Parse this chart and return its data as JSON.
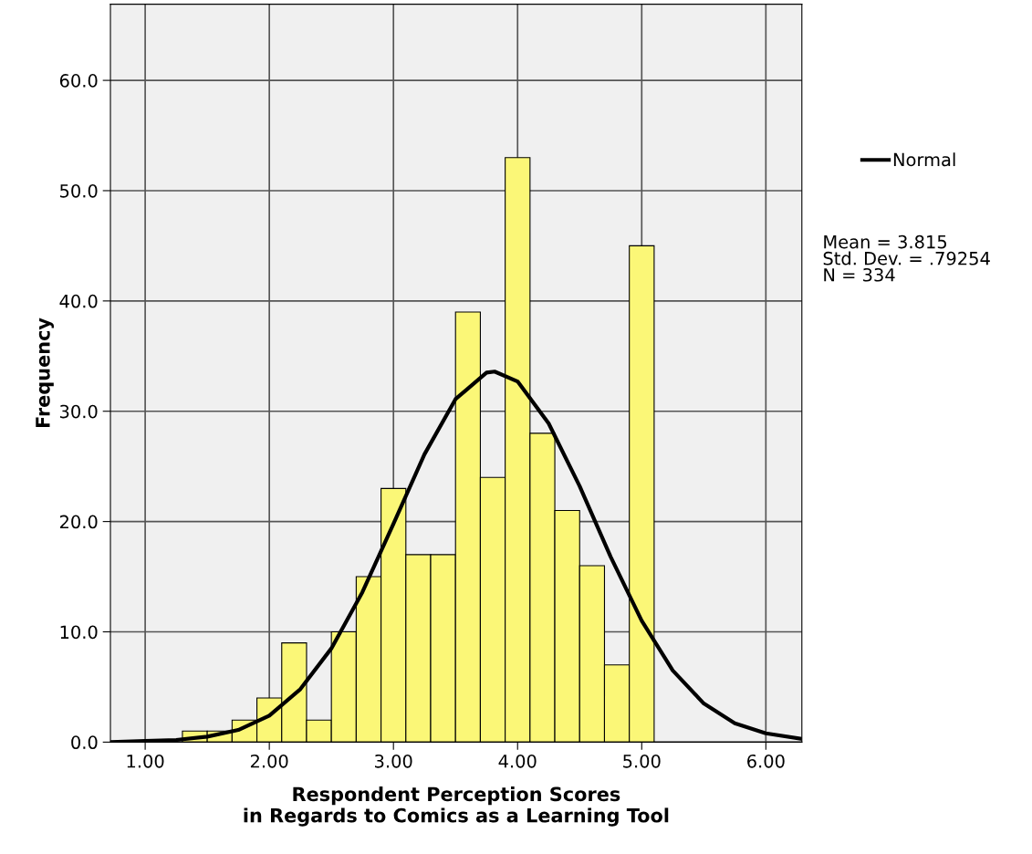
{
  "chart_data": {
    "type": "histogram",
    "xlabel": "Respondent Perception Scores\nin Regards to Comics as a Learning Tool",
    "ylabel": "Frequency",
    "bins": [
      1.3,
      1.5,
      1.7,
      1.9,
      2.1,
      2.3,
      2.5,
      2.7,
      2.9,
      3.1,
      3.3,
      3.5,
      3.7,
      3.9,
      4.1,
      4.3,
      4.5,
      4.7,
      4.9,
      5.1
    ],
    "values": [
      1,
      1,
      2,
      4,
      9,
      2,
      10,
      15,
      23,
      17,
      17,
      39,
      24,
      53,
      28,
      21,
      16,
      7,
      45
    ],
    "color": "#fbf777",
    "series": [
      {
        "name": "Normal",
        "type": "line",
        "color": "#000000",
        "x": [
          0.72,
          1.0,
          1.25,
          1.5,
          1.75,
          2.0,
          2.25,
          2.5,
          2.75,
          3.0,
          3.25,
          3.5,
          3.75,
          3.815,
          4.0,
          4.25,
          4.5,
          4.75,
          5.0,
          5.25,
          5.5,
          5.75,
          6.0,
          6.29
        ],
        "values": [
          0.0,
          0.1,
          0.2,
          0.5,
          1.1,
          2.4,
          4.8,
          8.5,
          13.6,
          19.8,
          26.1,
          31.1,
          33.5,
          33.6,
          32.7,
          28.9,
          23.2,
          16.8,
          11.0,
          6.5,
          3.5,
          1.7,
          0.8,
          0.3
        ]
      }
    ],
    "xlim": [
      0.72,
      6.29
    ],
    "ylim": [
      0,
      66.9
    ],
    "xticks": [
      {
        "value": 1,
        "label": "1.00"
      },
      {
        "value": 2,
        "label": "2.00"
      },
      {
        "value": 3,
        "label": "3.00"
      },
      {
        "value": 4,
        "label": "4.00"
      },
      {
        "value": 5,
        "label": "5.00"
      },
      {
        "value": 6,
        "label": "6.00"
      }
    ],
    "yticks": [
      {
        "value": 0,
        "label": "0.0"
      },
      {
        "value": 10,
        "label": "10.0"
      },
      {
        "value": 20,
        "label": "20.0"
      },
      {
        "value": 30,
        "label": "30.0"
      },
      {
        "value": 40,
        "label": "40.0"
      },
      {
        "value": 50,
        "label": "50.0"
      },
      {
        "value": 60,
        "label": "60.0"
      }
    ],
    "grid": true,
    "legend": "top right",
    "annotations": [
      "Mean = 3.815\nStd. Dev. = .79254\nN = 334"
    ]
  }
}
